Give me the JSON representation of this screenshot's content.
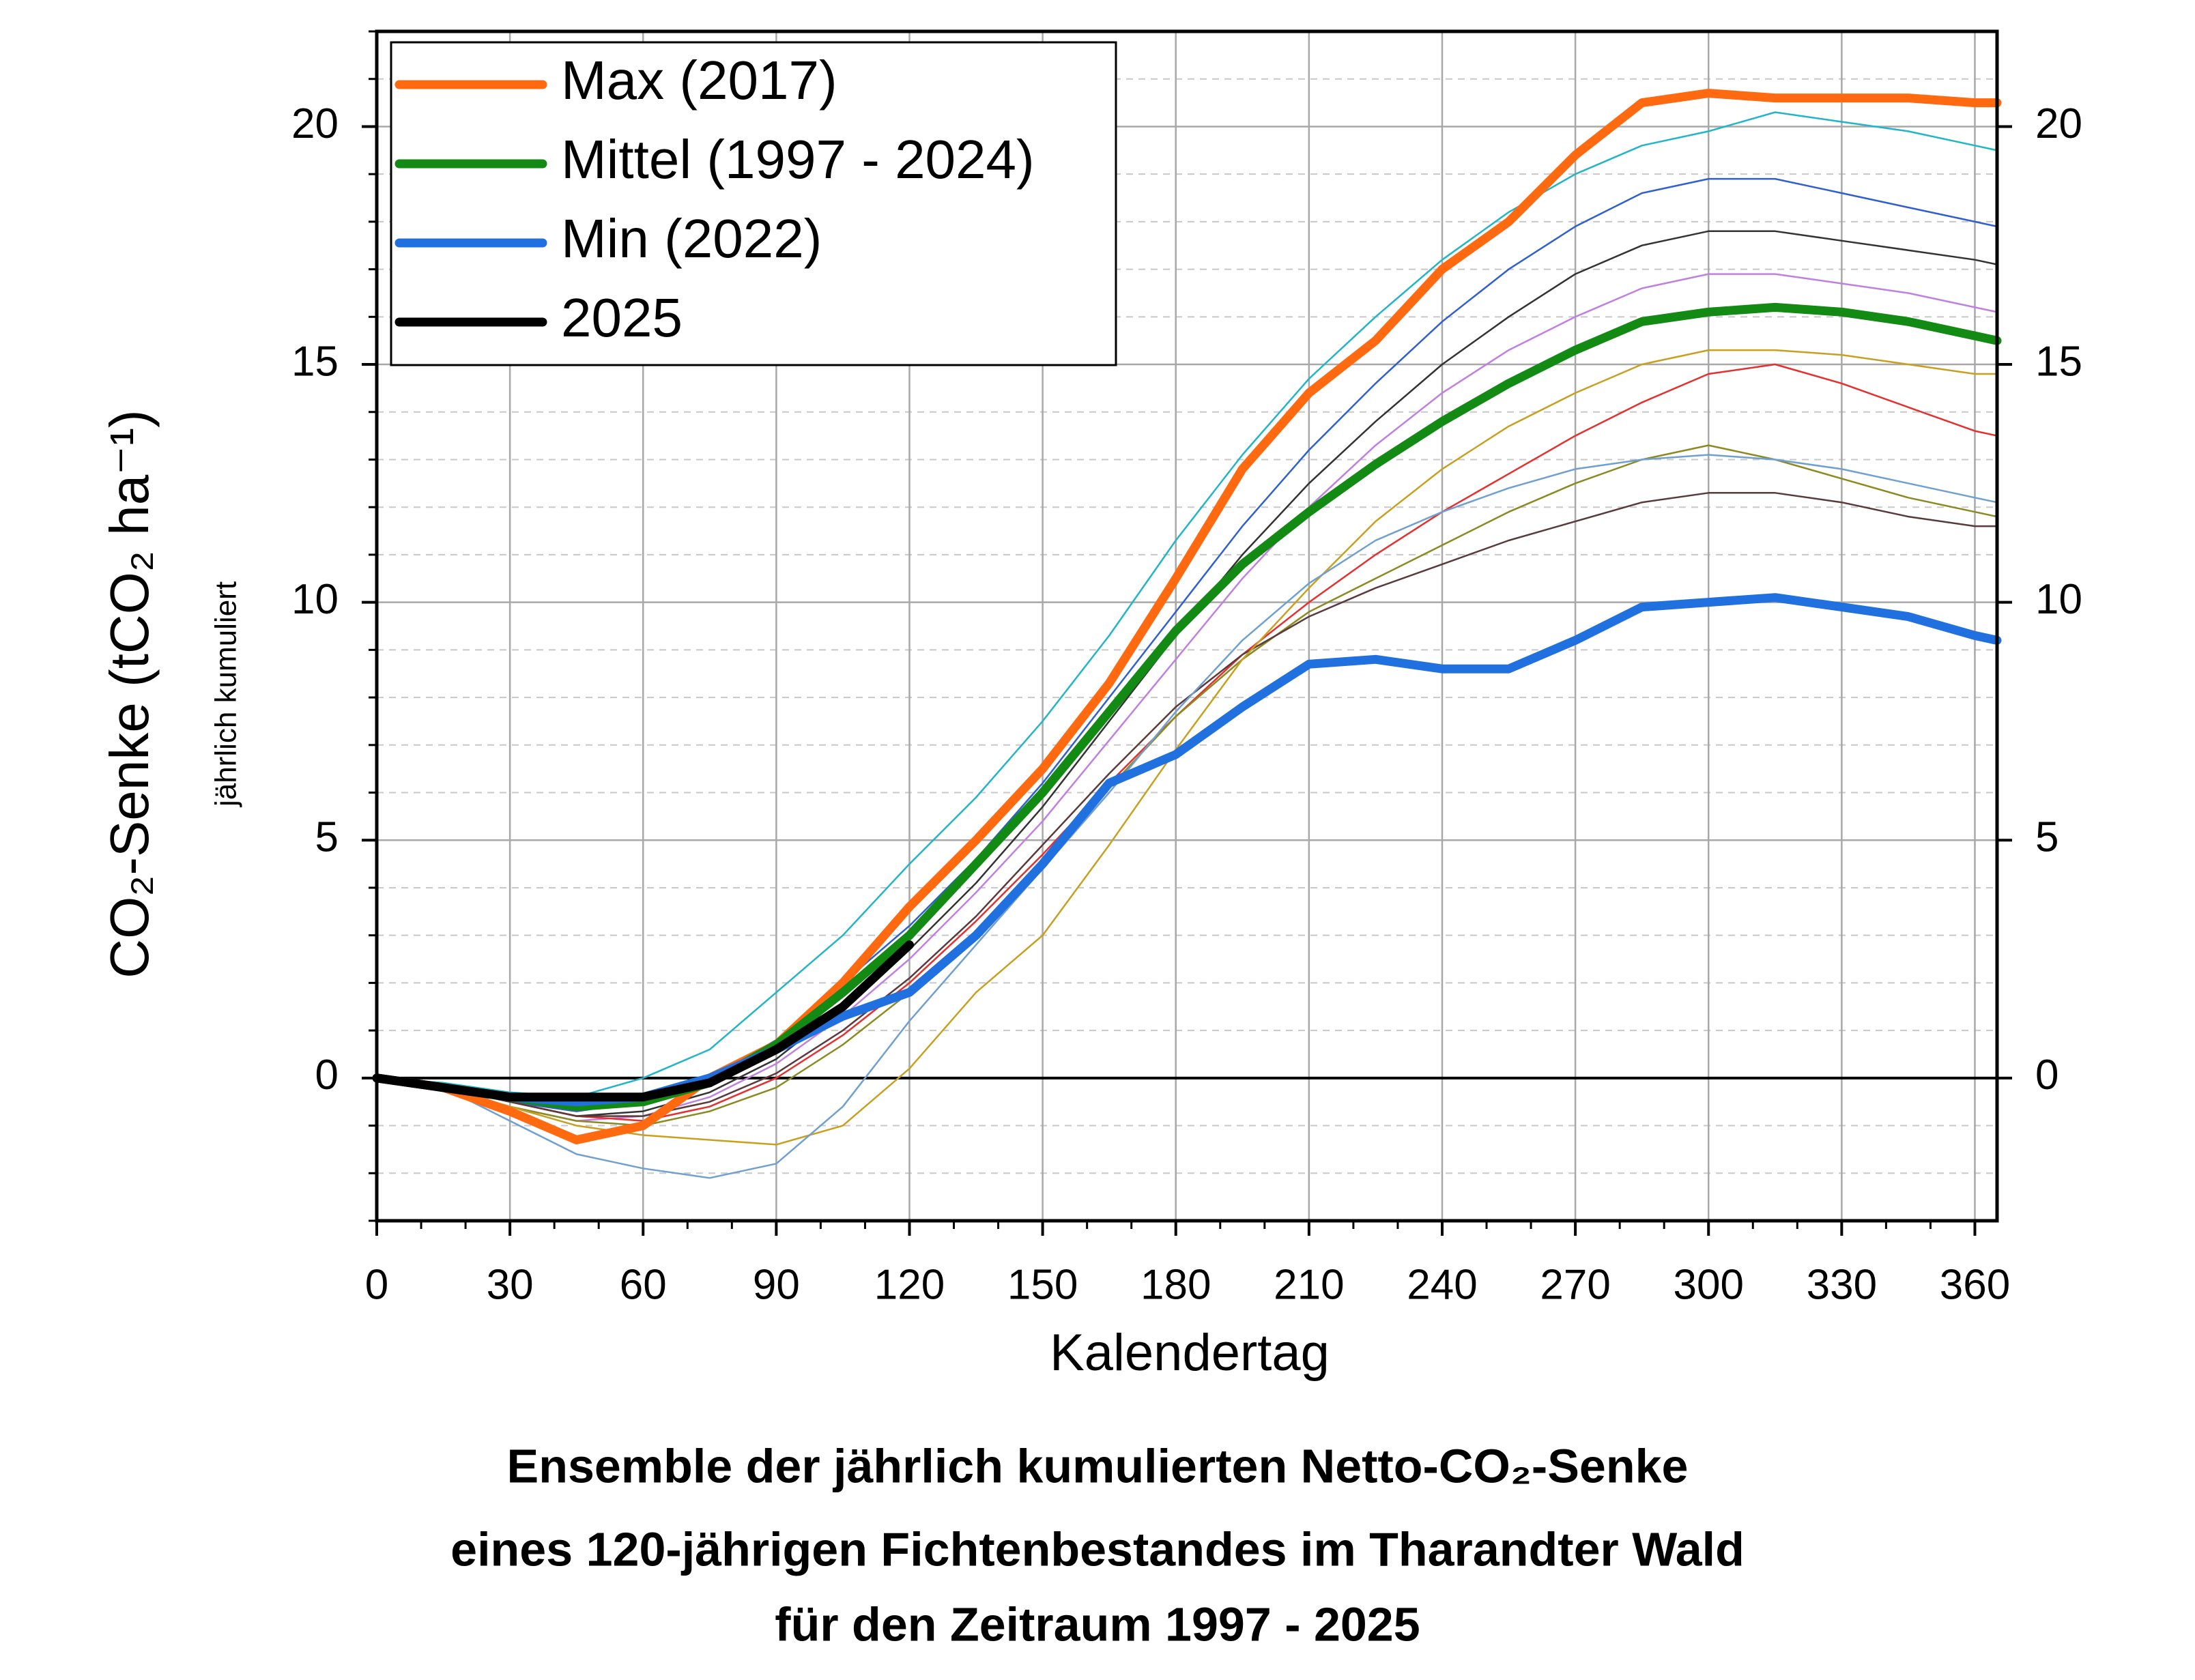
{
  "chart_data": {
    "type": "line",
    "title": [
      "Ensemble der jährlich kumulierten Netto-CO₂-Senke",
      "eines 120-jährigen Fichtenbestandes im Tharandter Wald",
      "für den Zeitraum 1997 - 2025"
    ],
    "x_label": "Kalendertag",
    "y_label": "CO₂-Senke (tCO₂ ha⁻¹)",
    "y_label_note": "jährlich kumuliert",
    "x": [
      0,
      15,
      30,
      45,
      60,
      75,
      90,
      105,
      120,
      135,
      150,
      165,
      180,
      195,
      210,
      225,
      240,
      255,
      270,
      285,
      300,
      315,
      330,
      345,
      360,
      365
    ],
    "xlim": [
      0,
      365
    ],
    "xticks": [
      0,
      30,
      60,
      90,
      120,
      150,
      180,
      210,
      240,
      270,
      300,
      330,
      360
    ],
    "xticks_minor": [
      10,
      20,
      40,
      50,
      70,
      80,
      100,
      110,
      130,
      140,
      160,
      170,
      190,
      200,
      220,
      230,
      250,
      260,
      280,
      290,
      310,
      320,
      340,
      350
    ],
    "ylim": [
      -3,
      22
    ],
    "yticks": [
      0,
      5,
      10,
      15,
      20
    ],
    "yticks_minor": [
      -3,
      -2,
      -1,
      1,
      2,
      3,
      4,
      6,
      7,
      8,
      9,
      11,
      12,
      13,
      14,
      16,
      17,
      18,
      19,
      21,
      22
    ],
    "y2lim": [
      -3,
      22
    ],
    "y2ticks": [
      0,
      5,
      10,
      15,
      20
    ],
    "grid": true,
    "legend": "upper left",
    "series": [
      {
        "color": "#22b5c8",
        "values": [
          0,
          -0.1,
          -0.3,
          -0.4,
          0,
          0.6,
          1.8,
          3.0,
          4.5,
          5.9,
          7.5,
          9.3,
          11.3,
          13.1,
          14.7,
          16.0,
          17.2,
          18.2,
          19.0,
          19.6,
          19.9,
          20.3,
          20.1,
          19.9,
          19.6,
          19.5
        ]
      },
      {
        "color": "#2f5fd0",
        "values": [
          0,
          -0.2,
          -0.5,
          -0.7,
          -0.5,
          0,
          0.8,
          2.0,
          3.2,
          4.6,
          6.2,
          8.0,
          9.8,
          11.6,
          13.2,
          14.6,
          15.9,
          17.0,
          17.9,
          18.6,
          18.9,
          18.9,
          18.6,
          18.3,
          18.0,
          17.9
        ]
      },
      {
        "color": "#333333",
        "values": [
          0,
          -0.2,
          -0.5,
          -0.8,
          -0.7,
          -0.3,
          0.4,
          1.5,
          2.7,
          4.1,
          5.7,
          7.5,
          9.3,
          11.0,
          12.5,
          13.8,
          15.0,
          16.0,
          16.9,
          17.5,
          17.8,
          17.8,
          17.6,
          17.4,
          17.2,
          17.1
        ]
      },
      {
        "color": "#c080e0",
        "values": [
          0,
          -0.2,
          -0.6,
          -0.9,
          -0.8,
          -0.4,
          0.3,
          1.3,
          2.5,
          3.9,
          5.4,
          7.1,
          8.8,
          10.5,
          12.0,
          13.3,
          14.4,
          15.3,
          16.0,
          16.6,
          16.9,
          16.9,
          16.7,
          16.5,
          16.2,
          16.1
        ]
      },
      {
        "color": "#e53030",
        "values": [
          0,
          -0.2,
          -0.5,
          -0.8,
          -0.9,
          -0.6,
          0,
          0.9,
          2.0,
          3.3,
          4.7,
          6.2,
          7.6,
          8.9,
          10.0,
          11.0,
          11.9,
          12.7,
          13.5,
          14.2,
          14.8,
          15.0,
          14.6,
          14.1,
          13.6,
          13.5
        ]
      },
      {
        "color": "#8a8a20",
        "values": [
          0,
          -0.2,
          -0.6,
          -0.9,
          -1.0,
          -0.7,
          -0.2,
          0.7,
          1.8,
          3.1,
          4.6,
          6.1,
          7.6,
          8.8,
          9.8,
          10.5,
          11.2,
          11.9,
          12.5,
          13.0,
          13.3,
          13.0,
          12.6,
          12.2,
          11.9,
          11.8
        ]
      },
      {
        "color": "#5a3a3a",
        "values": [
          0,
          -0.2,
          -0.5,
          -0.8,
          -0.8,
          -0.5,
          0.1,
          1.0,
          2.1,
          3.4,
          4.9,
          6.4,
          7.8,
          8.9,
          9.7,
          10.3,
          10.8,
          11.3,
          11.7,
          12.1,
          12.3,
          12.3,
          12.1,
          11.8,
          11.6,
          11.6
        ]
      },
      {
        "color": "#c8a020",
        "values": [
          0,
          -0.2,
          -0.6,
          -1.0,
          -1.2,
          -1.3,
          -1.4,
          -1.0,
          0.2,
          1.8,
          3.0,
          4.9,
          6.9,
          8.8,
          10.3,
          11.7,
          12.8,
          13.7,
          14.4,
          15.0,
          15.3,
          15.3,
          15.2,
          15.0,
          14.8,
          14.8
        ]
      },
      {
        "color": "#6fa0d0",
        "values": [
          0,
          -0.2,
          -0.9,
          -1.6,
          -1.9,
          -2.1,
          -1.8,
          -0.6,
          1.2,
          2.8,
          4.4,
          6.0,
          7.7,
          9.2,
          10.4,
          11.3,
          11.9,
          12.4,
          12.8,
          13.0,
          13.1,
          13.0,
          12.8,
          12.5,
          12.2,
          12.1
        ]
      },
      {
        "name": "Max (2017)",
        "color": "#ff6a10",
        "width": "main",
        "values": [
          0,
          -0.2,
          -0.7,
          -1.3,
          -1.0,
          0,
          0.7,
          2.0,
          3.6,
          5.0,
          6.5,
          8.3,
          10.5,
          12.8,
          14.4,
          15.5,
          17.0,
          18.0,
          19.4,
          20.5,
          20.7,
          20.6,
          20.6,
          20.6,
          20.5,
          20.5
        ]
      },
      {
        "name": "Mittel (1997 - 2024)",
        "color": "#138a13",
        "width": "main",
        "values": [
          0,
          -0.2,
          -0.4,
          -0.6,
          -0.5,
          -0.1,
          0.7,
          1.8,
          3.0,
          4.5,
          6.0,
          7.7,
          9.4,
          10.8,
          11.9,
          12.9,
          13.8,
          14.6,
          15.3,
          15.9,
          16.1,
          16.2,
          16.1,
          15.9,
          15.6,
          15.5
        ]
      },
      {
        "name": "Min (2022)",
        "color": "#2070e0",
        "width": "main",
        "values": [
          0,
          -0.2,
          -0.4,
          -0.5,
          -0.4,
          0,
          0.6,
          1.3,
          1.8,
          3.0,
          4.5,
          6.2,
          6.8,
          7.8,
          8.7,
          8.8,
          8.6,
          8.6,
          9.2,
          9.9,
          10.0,
          10.1,
          9.9,
          9.7,
          9.3,
          9.2
        ]
      },
      {
        "name": "2025",
        "color": "#000000",
        "width": "main",
        "values": [
          0,
          -0.2,
          -0.4,
          -0.4,
          -0.4,
          -0.1,
          0.6,
          1.5,
          2.8,
          null,
          null,
          null,
          null,
          null,
          null,
          null,
          null,
          null,
          null,
          null,
          null,
          null,
          null,
          null,
          null,
          null
        ]
      }
    ]
  }
}
